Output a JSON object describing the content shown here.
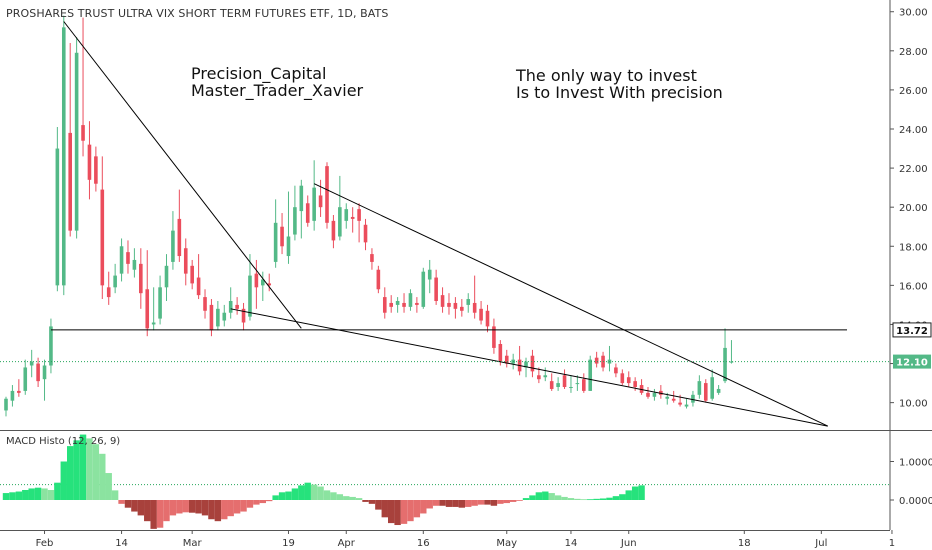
{
  "header": {
    "title": "PROSHARES TRUST ULTRA VIX SHORT TERM FUTURES ETF, 1D, BATS"
  },
  "annotations": {
    "left": [
      "Precision_Capital",
      "Master_Trader_Xavier"
    ],
    "right": [
      "The only way to invest",
      "Is to Invest With precision"
    ]
  },
  "colors": {
    "up": "#53b987",
    "down": "#eb4d5c",
    "macd_pos": "#26e27c",
    "macd_pos_light": "#8be3a0",
    "macd_neg": "#a8413c",
    "macd_neg_light": "#e56e6e",
    "line": "#000000",
    "price_tag_bg": "#ffffff"
  },
  "chart_data": [
    {
      "type": "candlestick",
      "title": "PROSHARES TRUST ULTRA VIX SHORT TERM FUTURES ETF, 1D, BATS",
      "ylim": [
        8.6,
        30.6
      ],
      "y_ticks": [
        "10.00",
        "12.00",
        "14.00",
        "16.00",
        "18.00",
        "20.00",
        "22.00",
        "24.00",
        "26.00",
        "28.00",
        "30.00"
      ],
      "x_ticks": [
        "Feb",
        "14",
        "Mar",
        "19",
        "Apr",
        "16",
        "May",
        "14",
        "Jun",
        "18",
        "Jul",
        "1"
      ],
      "price_labels": [
        {
          "value": "13.72",
          "style": "boxed"
        },
        {
          "value": "12.10",
          "style": "filled"
        }
      ],
      "candles": [
        {
          "o": 9.6,
          "h": 10.3,
          "l": 9.3,
          "c": 10.2
        },
        {
          "o": 10.1,
          "h": 10.9,
          "l": 9.8,
          "c": 10.6
        },
        {
          "o": 10.6,
          "h": 11.2,
          "l": 10.3,
          "c": 10.5
        },
        {
          "o": 10.6,
          "h": 12.2,
          "l": 10.4,
          "c": 11.8
        },
        {
          "o": 11.9,
          "h": 12.7,
          "l": 11.3,
          "c": 12.1
        },
        {
          "o": 12.0,
          "h": 12.3,
          "l": 10.8,
          "c": 11.1
        },
        {
          "o": 11.2,
          "h": 12.2,
          "l": 10.1,
          "c": 11.9
        },
        {
          "o": 11.9,
          "h": 14.3,
          "l": 11.5,
          "c": 13.9
        },
        {
          "o": 16.0,
          "h": 24.1,
          "l": 15.7,
          "c": 23.0
        },
        {
          "o": 16.0,
          "h": 29.8,
          "l": 15.5,
          "c": 29.2
        },
        {
          "o": 23.8,
          "h": 28.4,
          "l": 18.5,
          "c": 18.8
        },
        {
          "o": 18.8,
          "h": 28.7,
          "l": 18.4,
          "c": 27.9
        },
        {
          "o": 24.2,
          "h": 29.7,
          "l": 22.6,
          "c": 23.4
        },
        {
          "o": 23.2,
          "h": 24.4,
          "l": 20.4,
          "c": 21.4
        },
        {
          "o": 22.6,
          "h": 23.1,
          "l": 20.8,
          "c": 21.2
        },
        {
          "o": 20.9,
          "h": 22.6,
          "l": 15.3,
          "c": 16.0
        },
        {
          "o": 15.9,
          "h": 16.7,
          "l": 15.0,
          "c": 15.4
        },
        {
          "o": 15.9,
          "h": 17.1,
          "l": 15.6,
          "c": 16.5
        },
        {
          "o": 16.6,
          "h": 18.4,
          "l": 16.2,
          "c": 18.0
        },
        {
          "o": 17.7,
          "h": 18.3,
          "l": 16.6,
          "c": 17.1
        },
        {
          "o": 16.8,
          "h": 17.9,
          "l": 16.4,
          "c": 17.3
        },
        {
          "o": 17.1,
          "h": 17.9,
          "l": 14.8,
          "c": 15.6
        },
        {
          "o": 15.8,
          "h": 17.8,
          "l": 13.4,
          "c": 13.8
        },
        {
          "o": 14.0,
          "h": 15.9,
          "l": 13.7,
          "c": 14.1
        },
        {
          "o": 14.3,
          "h": 16.5,
          "l": 14.0,
          "c": 15.9
        },
        {
          "o": 15.9,
          "h": 17.6,
          "l": 15.2,
          "c": 17.0
        },
        {
          "o": 17.2,
          "h": 19.8,
          "l": 16.8,
          "c": 18.8
        },
        {
          "o": 19.4,
          "h": 20.9,
          "l": 17.2,
          "c": 17.5
        },
        {
          "o": 17.9,
          "h": 18.4,
          "l": 16.0,
          "c": 16.6
        },
        {
          "o": 17.0,
          "h": 17.3,
          "l": 15.8,
          "c": 16.1
        },
        {
          "o": 16.4,
          "h": 17.6,
          "l": 15.3,
          "c": 15.5
        },
        {
          "o": 15.4,
          "h": 15.8,
          "l": 14.3,
          "c": 14.7
        },
        {
          "o": 15.0,
          "h": 15.3,
          "l": 13.4,
          "c": 13.7
        },
        {
          "o": 13.9,
          "h": 15.2,
          "l": 13.7,
          "c": 14.8
        },
        {
          "o": 14.2,
          "h": 15.0,
          "l": 13.9,
          "c": 14.6
        },
        {
          "o": 14.6,
          "h": 15.9,
          "l": 14.3,
          "c": 15.2
        },
        {
          "o": 15.0,
          "h": 15.4,
          "l": 14.5,
          "c": 14.8
        },
        {
          "o": 14.8,
          "h": 15.1,
          "l": 13.7,
          "c": 14.1
        },
        {
          "o": 14.4,
          "h": 17.6,
          "l": 14.2,
          "c": 16.5
        },
        {
          "o": 16.6,
          "h": 17.3,
          "l": 14.8,
          "c": 15.9
        },
        {
          "o": 16.0,
          "h": 16.7,
          "l": 15.2,
          "c": 16.3
        },
        {
          "o": 16.1,
          "h": 16.6,
          "l": 15.7,
          "c": 16.0
        },
        {
          "o": 17.2,
          "h": 20.4,
          "l": 16.9,
          "c": 19.2
        },
        {
          "o": 19.0,
          "h": 19.7,
          "l": 17.6,
          "c": 18.0
        },
        {
          "o": 17.5,
          "h": 20.8,
          "l": 17.1,
          "c": 18.5
        },
        {
          "o": 18.6,
          "h": 21.1,
          "l": 18.3,
          "c": 20.0
        },
        {
          "o": 19.8,
          "h": 21.4,
          "l": 18.4,
          "c": 21.1
        },
        {
          "o": 20.2,
          "h": 20.6,
          "l": 19.0,
          "c": 19.2
        },
        {
          "o": 19.3,
          "h": 22.4,
          "l": 18.8,
          "c": 21.0
        },
        {
          "o": 20.6,
          "h": 21.4,
          "l": 19.5,
          "c": 20.0
        },
        {
          "o": 22.1,
          "h": 22.3,
          "l": 18.9,
          "c": 19.2
        },
        {
          "o": 19.3,
          "h": 19.6,
          "l": 17.9,
          "c": 18.3
        },
        {
          "o": 18.5,
          "h": 21.6,
          "l": 18.3,
          "c": 20.0
        },
        {
          "o": 19.3,
          "h": 20.2,
          "l": 18.9,
          "c": 19.9
        },
        {
          "o": 19.5,
          "h": 20.0,
          "l": 18.7,
          "c": 19.4
        },
        {
          "o": 19.9,
          "h": 20.2,
          "l": 18.2,
          "c": 19.3
        },
        {
          "o": 19.1,
          "h": 19.4,
          "l": 17.8,
          "c": 18.2
        },
        {
          "o": 17.6,
          "h": 17.9,
          "l": 16.8,
          "c": 17.2
        },
        {
          "o": 16.8,
          "h": 17.0,
          "l": 15.6,
          "c": 15.8
        },
        {
          "o": 15.4,
          "h": 15.9,
          "l": 14.3,
          "c": 14.6
        },
        {
          "o": 15.1,
          "h": 15.5,
          "l": 14.6,
          "c": 14.9
        },
        {
          "o": 15.0,
          "h": 15.4,
          "l": 14.6,
          "c": 15.2
        },
        {
          "o": 15.1,
          "h": 15.6,
          "l": 14.6,
          "c": 14.9
        },
        {
          "o": 14.9,
          "h": 15.8,
          "l": 14.7,
          "c": 15.6
        },
        {
          "o": 15.1,
          "h": 15.4,
          "l": 14.6,
          "c": 15.0
        },
        {
          "o": 14.9,
          "h": 16.9,
          "l": 14.8,
          "c": 16.7
        },
        {
          "o": 16.3,
          "h": 17.3,
          "l": 15.6,
          "c": 16.8
        },
        {
          "o": 16.4,
          "h": 16.8,
          "l": 15.0,
          "c": 15.2
        },
        {
          "o": 15.5,
          "h": 15.9,
          "l": 14.6,
          "c": 14.9
        },
        {
          "o": 15.1,
          "h": 15.6,
          "l": 14.5,
          "c": 14.9
        },
        {
          "o": 15.1,
          "h": 15.4,
          "l": 14.3,
          "c": 14.8
        },
        {
          "o": 14.9,
          "h": 15.3,
          "l": 14.4,
          "c": 14.7
        },
        {
          "o": 15.0,
          "h": 15.6,
          "l": 14.6,
          "c": 15.3
        },
        {
          "o": 15.1,
          "h": 16.5,
          "l": 14.3,
          "c": 14.6
        },
        {
          "o": 14.8,
          "h": 15.2,
          "l": 14.0,
          "c": 14.2
        },
        {
          "o": 14.7,
          "h": 15.0,
          "l": 13.6,
          "c": 13.9
        },
        {
          "o": 13.9,
          "h": 14.3,
          "l": 12.5,
          "c": 12.8
        },
        {
          "o": 13.0,
          "h": 13.2,
          "l": 11.9,
          "c": 12.1
        },
        {
          "o": 12.4,
          "h": 12.7,
          "l": 11.8,
          "c": 12.0
        },
        {
          "o": 12.0,
          "h": 12.5,
          "l": 11.7,
          "c": 12.2
        },
        {
          "o": 12.2,
          "h": 12.9,
          "l": 11.4,
          "c": 11.6
        },
        {
          "o": 11.8,
          "h": 12.3,
          "l": 11.3,
          "c": 12.1
        },
        {
          "o": 12.4,
          "h": 12.7,
          "l": 11.3,
          "c": 11.6
        },
        {
          "o": 11.4,
          "h": 11.8,
          "l": 11.0,
          "c": 11.2
        },
        {
          "o": 11.3,
          "h": 11.8,
          "l": 11.1,
          "c": 11.4
        },
        {
          "o": 11.1,
          "h": 11.5,
          "l": 10.6,
          "c": 10.7
        },
        {
          "o": 10.8,
          "h": 11.3,
          "l": 10.6,
          "c": 11.0
        },
        {
          "o": 11.4,
          "h": 11.7,
          "l": 10.7,
          "c": 10.8
        },
        {
          "o": 10.8,
          "h": 11.4,
          "l": 10.5,
          "c": 10.8
        },
        {
          "o": 11.0,
          "h": 11.4,
          "l": 10.6,
          "c": 11.0
        },
        {
          "o": 11.2,
          "h": 11.5,
          "l": 10.5,
          "c": 10.6
        },
        {
          "o": 10.6,
          "h": 12.4,
          "l": 10.6,
          "c": 12.2
        },
        {
          "o": 12.3,
          "h": 12.6,
          "l": 11.8,
          "c": 12.0
        },
        {
          "o": 12.4,
          "h": 12.6,
          "l": 11.6,
          "c": 11.8
        },
        {
          "o": 12.0,
          "h": 12.9,
          "l": 11.6,
          "c": 12.2
        },
        {
          "o": 11.8,
          "h": 12.0,
          "l": 11.3,
          "c": 11.5
        },
        {
          "o": 11.5,
          "h": 11.7,
          "l": 10.9,
          "c": 11.0
        },
        {
          "o": 11.3,
          "h": 11.6,
          "l": 10.8,
          "c": 11.0
        },
        {
          "o": 11.1,
          "h": 11.3,
          "l": 10.6,
          "c": 10.8
        },
        {
          "o": 10.9,
          "h": 11.2,
          "l": 10.4,
          "c": 10.5
        },
        {
          "o": 10.5,
          "h": 10.8,
          "l": 10.2,
          "c": 10.3
        },
        {
          "o": 10.3,
          "h": 10.7,
          "l": 10.1,
          "c": 10.5
        },
        {
          "o": 10.6,
          "h": 10.9,
          "l": 10.2,
          "c": 10.4
        },
        {
          "o": 10.2,
          "h": 10.5,
          "l": 9.9,
          "c": 10.3
        },
        {
          "o": 10.2,
          "h": 10.6,
          "l": 10.0,
          "c": 10.1
        },
        {
          "o": 10.0,
          "h": 10.4,
          "l": 9.8,
          "c": 9.9
        },
        {
          "o": 9.8,
          "h": 10.2,
          "l": 9.7,
          "c": 9.9
        },
        {
          "o": 10.0,
          "h": 10.6,
          "l": 9.8,
          "c": 10.4
        },
        {
          "o": 10.4,
          "h": 11.4,
          "l": 10.2,
          "c": 11.1
        },
        {
          "o": 11.0,
          "h": 11.2,
          "l": 10.0,
          "c": 10.1
        },
        {
          "o": 10.2,
          "h": 11.7,
          "l": 10.1,
          "c": 11.3
        },
        {
          "o": 10.5,
          "h": 10.9,
          "l": 10.4,
          "c": 10.7
        },
        {
          "o": 11.1,
          "h": 13.8,
          "l": 11.0,
          "c": 12.8
        },
        {
          "o": 12.1,
          "h": 13.2,
          "l": 12.0,
          "c": 12.1
        }
      ],
      "trendlines": [
        {
          "from": {
            "bar": 9,
            "price": 29.5
          },
          "to": {
            "bar": 46,
            "price": 13.8
          }
        },
        {
          "from": {
            "bar": 35,
            "price": 14.8
          },
          "to": {
            "bar": 128,
            "price": 8.8
          }
        },
        {
          "from": {
            "bar": 48,
            "price": 21.2
          },
          "to": {
            "bar": 128,
            "price": 8.8
          }
        },
        {
          "from": {
            "bar": 7,
            "price": 13.72
          },
          "to": {
            "bar": 131,
            "price": 13.72
          }
        }
      ]
    },
    {
      "type": "bar",
      "title": "MACD Histo (12, 26, 9)",
      "ylim": [
        -1.2,
        1.7
      ],
      "y_ticks": [
        "1.0000",
        "0.0000"
      ],
      "values": [
        0.18,
        0.2,
        0.22,
        0.26,
        0.3,
        0.32,
        0.3,
        0.26,
        0.45,
        1.0,
        1.4,
        1.55,
        1.7,
        1.6,
        1.45,
        1.2,
        0.7,
        0.25,
        -0.1,
        -0.2,
        -0.3,
        -0.4,
        -0.55,
        -0.75,
        -0.72,
        -0.55,
        -0.4,
        -0.35,
        -0.32,
        -0.33,
        -0.35,
        -0.4,
        -0.5,
        -0.55,
        -0.5,
        -0.42,
        -0.35,
        -0.3,
        -0.2,
        -0.12,
        -0.08,
        -0.03,
        0.12,
        0.2,
        0.22,
        0.3,
        0.38,
        0.45,
        0.4,
        0.35,
        0.25,
        0.2,
        0.15,
        0.1,
        0.08,
        0.05,
        -0.05,
        -0.1,
        -0.25,
        -0.45,
        -0.6,
        -0.65,
        -0.62,
        -0.55,
        -0.45,
        -0.35,
        -0.22,
        -0.15,
        -0.15,
        -0.18,
        -0.18,
        -0.2,
        -0.18,
        -0.15,
        -0.12,
        -0.12,
        -0.15,
        -0.1,
        -0.08,
        -0.05,
        -0.02,
        0.05,
        0.12,
        0.2,
        0.22,
        0.18,
        0.12,
        0.08,
        0.05,
        0.03,
        0.02,
        0.02,
        0.03,
        0.04,
        0.06,
        0.1,
        0.15,
        0.25,
        0.35,
        0.38
      ]
    }
  ]
}
